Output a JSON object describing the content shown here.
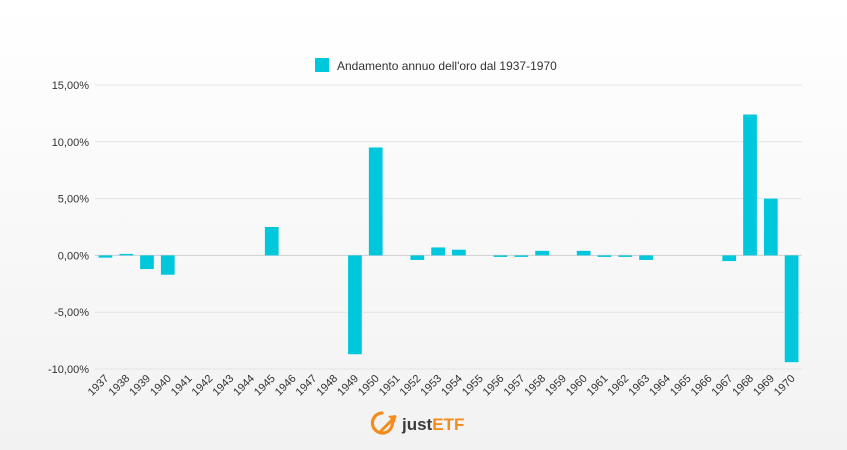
{
  "chart_data": {
    "type": "bar",
    "legend": "Andamento annuo dell'oro dal 1937-1970",
    "legend_position": "top-center",
    "grid": true,
    "ylim": [
      -10,
      15
    ],
    "yticks": [
      15,
      10,
      5,
      0,
      -5,
      -10
    ],
    "ytick_labels": [
      "15,00%",
      "10,00%",
      "5,00%",
      "0,00%",
      "-5,00%",
      "-10,00%"
    ],
    "categories": [
      "1937",
      "1938",
      "1939",
      "1940",
      "1941",
      "1942",
      "1943",
      "1944",
      "1945",
      "1946",
      "1947",
      "1948",
      "1949",
      "1950",
      "1951",
      "1952",
      "1953",
      "1954",
      "1955",
      "1956",
      "1957",
      "1958",
      "1959",
      "1960",
      "1961",
      "1962",
      "1963",
      "1964",
      "1965",
      "1966",
      "1967",
      "1968",
      "1969",
      "1970"
    ],
    "series": [
      {
        "name": "Andamento annuo dell'oro dal 1937-1970",
        "color": "#00c8dc",
        "values": [
          -0.2,
          0.1,
          -1.2,
          -1.7,
          0,
          0,
          0,
          0,
          2.5,
          0,
          0,
          0,
          -8.7,
          9.5,
          0,
          -0.4,
          0.7,
          0.5,
          0,
          -0.1,
          -0.1,
          0.4,
          0,
          0.4,
          -0.05,
          -0.05,
          -0.4,
          0,
          0,
          0,
          -0.5,
          12.4,
          5.0,
          -9.4
        ]
      }
    ]
  },
  "logo": {
    "text_plain": "just",
    "text_bold": "ETF",
    "icon": "arrow-circle-icon",
    "color_plain": "#3c3c3c",
    "color_bold": "#f28c1e"
  }
}
